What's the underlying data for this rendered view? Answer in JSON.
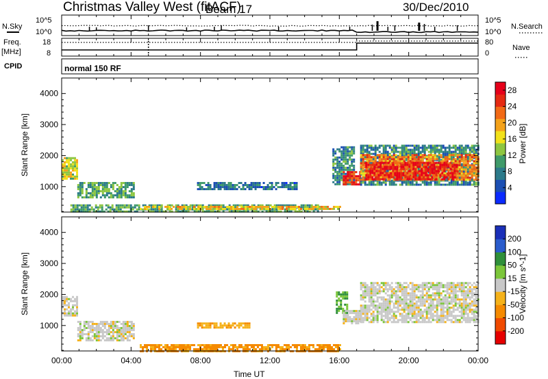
{
  "header": {
    "title": "Christmas Valley West (fitACF)",
    "beam": "Beam 17",
    "date": "30/Dec/2010"
  },
  "strips": {
    "nsky_label": "N.Sky",
    "nsearch_label": "N.Search",
    "freq_label": "Freq.",
    "freq_unit": "[MHz]",
    "nave_label": "Nave",
    "cpid_label": "CPID",
    "cpid_text": "normal 150 RF",
    "noise_ticks_left": [
      "10^5",
      "10^0"
    ],
    "noise_ticks_right": [
      "10^5",
      "10^0"
    ],
    "freq_ticks": [
      "18",
      "8"
    ],
    "nave_ticks": [
      "80",
      "0"
    ]
  },
  "axes": {
    "ylabel": "Slant Range [km]",
    "xlabel": "Time UT",
    "yticks": [
      "1000",
      "2000",
      "3000",
      "4000"
    ],
    "xticks": [
      "00:00",
      "04:00",
      "08:00",
      "12:00",
      "16:00",
      "20:00",
      "00:00"
    ]
  },
  "colors": {
    "power": [
      "#0b2bff",
      "#1c4fb3",
      "#2c7a8a",
      "#3f9a6a",
      "#8ec641",
      "#f2e11a",
      "#f4a21a",
      "#f26a16",
      "#e52a12",
      "#e6001a"
    ],
    "velocity": [
      "#e60000",
      "#f04a00",
      "#f58a00",
      "#f5b21a",
      "#c8c8c8",
      "#7cc63a",
      "#2f8f3a",
      "#2a5ccc",
      "#1a2fb8"
    ]
  },
  "chart_data": [
    {
      "type": "heatmap",
      "ylabel": "Slant Range [km]",
      "xlabel": "",
      "xlim": [
        "00:00",
        "24:00"
      ],
      "ylim": [
        180,
        4500
      ],
      "colorbar": {
        "label": "Power [dB]",
        "ticks": [
          "4",
          "8",
          "12",
          "16",
          "20",
          "24",
          "28"
        ],
        "range": [
          0,
          30
        ]
      },
      "regions": [
        {
          "t0": 0.0,
          "t1": 0.9,
          "r0": 1250,
          "r1": 1950,
          "value": 16
        },
        {
          "t0": 0.9,
          "t1": 4.2,
          "r0": 650,
          "r1": 1150,
          "value": 10
        },
        {
          "t0": 0.5,
          "t1": 14.8,
          "r0": 190,
          "r1": 430,
          "value": 10
        },
        {
          "t0": 4.5,
          "t1": 16.0,
          "r0": 250,
          "r1": 380,
          "value": 18
        },
        {
          "t0": 7.8,
          "t1": 13.5,
          "r0": 950,
          "r1": 1150,
          "value": 6
        },
        {
          "t0": 15.6,
          "t1": 16.8,
          "r0": 1100,
          "r1": 2300,
          "value": 8
        },
        {
          "t0": 16.2,
          "t1": 17.2,
          "r0": 1050,
          "r1": 1500,
          "value": 28
        },
        {
          "t0": 17.2,
          "t1": 24.0,
          "r0": 1050,
          "r1": 2350,
          "value": 8
        },
        {
          "t0": 17.2,
          "t1": 24.0,
          "r0": 1200,
          "r1": 2050,
          "value": 22
        },
        {
          "t0": 17.5,
          "t1": 22.8,
          "r0": 1250,
          "r1": 1800,
          "value": 28
        }
      ]
    },
    {
      "type": "heatmap",
      "ylabel": "Slant Range [km]",
      "xlabel": "Time UT",
      "xlim": [
        "00:00",
        "24:00"
      ],
      "ylim": [
        180,
        4500
      ],
      "colorbar": {
        "label": "Velocity [m s^-1]",
        "ticks": [
          "200",
          "100",
          "50",
          "15",
          "-15",
          "-50",
          "-100",
          "-200"
        ],
        "range": [
          -250,
          250
        ]
      },
      "regions": [
        {
          "t0": 0.0,
          "t1": 0.9,
          "r0": 1300,
          "r1": 1950,
          "value": 0
        },
        {
          "t0": 0.9,
          "t1": 4.2,
          "r0": 500,
          "r1": 1150,
          "value": 0
        },
        {
          "t0": 4.5,
          "t1": 16.0,
          "r0": 190,
          "r1": 400,
          "value": -60
        },
        {
          "t0": 7.8,
          "t1": 10.8,
          "r0": 950,
          "r1": 1100,
          "value": -40
        },
        {
          "t0": 15.8,
          "t1": 16.5,
          "r0": 1400,
          "r1": 2100,
          "value": 50
        },
        {
          "t0": 16.2,
          "t1": 17.2,
          "r0": 1100,
          "r1": 1500,
          "value": 0
        },
        {
          "t0": 17.2,
          "t1": 24.0,
          "r0": 1100,
          "r1": 2400,
          "value": 0
        }
      ]
    }
  ]
}
